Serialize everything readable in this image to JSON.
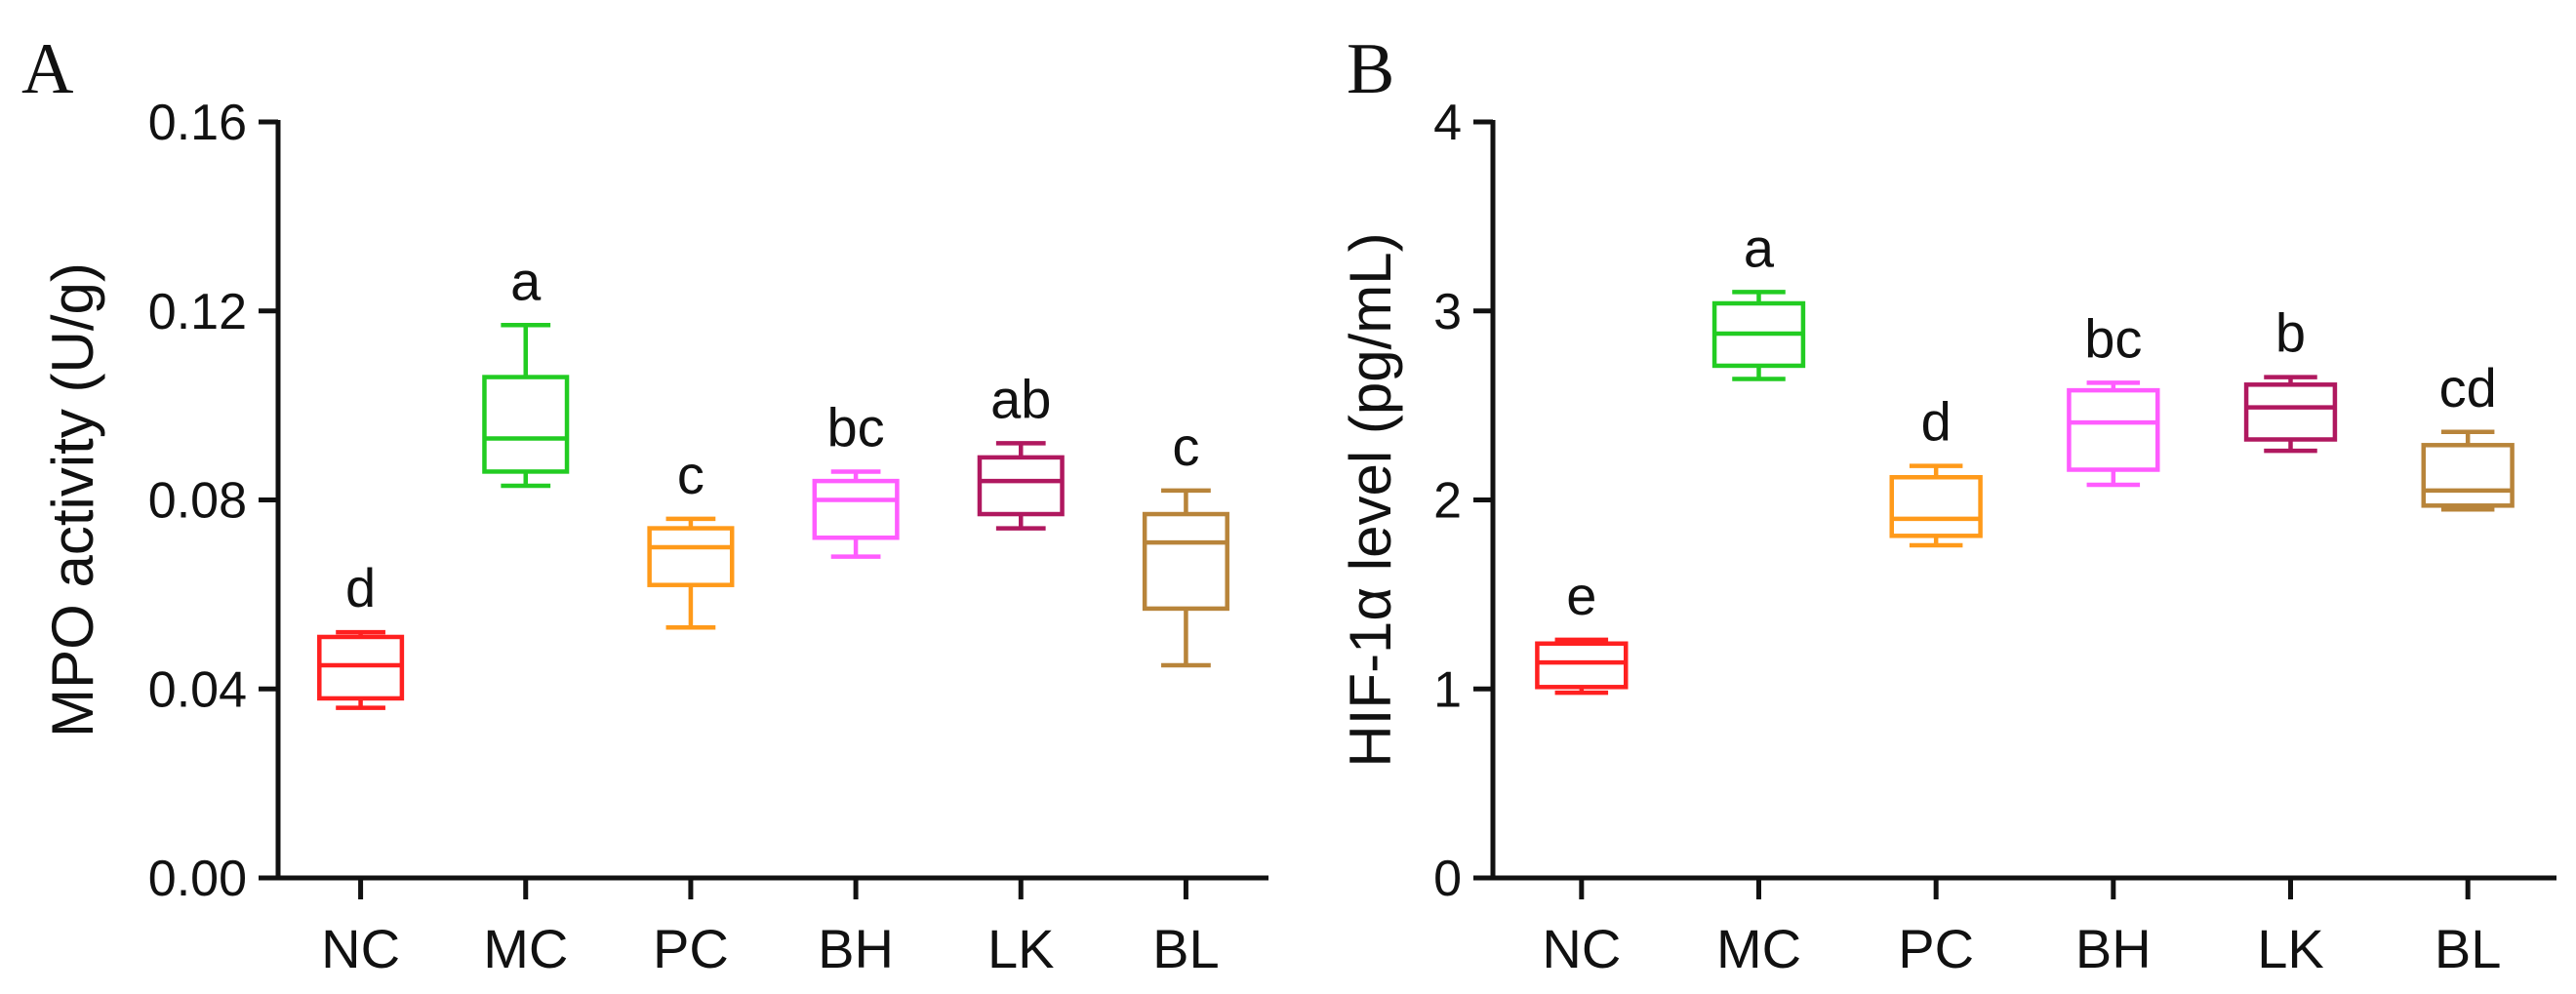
{
  "chart_data": [
    {
      "type": "box",
      "panel": "A",
      "ylabel": "MPO activity (U/g)",
      "xlabel": "",
      "ylim": [
        0,
        0.16
      ],
      "yticks": [
        0.0,
        0.04,
        0.08,
        0.12,
        0.16
      ],
      "ytick_labels": [
        "0.00",
        "0.04",
        "0.08",
        "0.12",
        "0.16"
      ],
      "categories": [
        "NC",
        "MC",
        "PC",
        "BH",
        "LK",
        "BL"
      ],
      "boxes": [
        {
          "group": "NC",
          "min": 0.036,
          "q1": 0.038,
          "median": 0.045,
          "q3": 0.051,
          "max": 0.052,
          "letter": "d",
          "color": "#ff2020"
        },
        {
          "group": "MC",
          "min": 0.083,
          "q1": 0.086,
          "median": 0.093,
          "q3": 0.106,
          "max": 0.117,
          "letter": "a",
          "color": "#22cc22"
        },
        {
          "group": "PC",
          "min": 0.053,
          "q1": 0.062,
          "median": 0.07,
          "q3": 0.074,
          "max": 0.076,
          "letter": "c",
          "color": "#ff9a1a"
        },
        {
          "group": "BH",
          "min": 0.068,
          "q1": 0.072,
          "median": 0.08,
          "q3": 0.084,
          "max": 0.086,
          "letter": "bc",
          "color": "#ff5cff"
        },
        {
          "group": "LK",
          "min": 0.074,
          "q1": 0.077,
          "median": 0.084,
          "q3": 0.089,
          "max": 0.092,
          "letter": "ab",
          "color": "#b0185f"
        },
        {
          "group": "BL",
          "min": 0.045,
          "q1": 0.057,
          "median": 0.071,
          "q3": 0.077,
          "max": 0.082,
          "letter": "c",
          "color": "#b8843a"
        }
      ]
    },
    {
      "type": "box",
      "panel": "B",
      "ylabel": "HIF-1α level (pg/mL)",
      "xlabel": "",
      "ylim": [
        0,
        4
      ],
      "yticks": [
        0,
        1,
        2,
        3,
        4
      ],
      "ytick_labels": [
        "0",
        "1",
        "2",
        "3",
        "4"
      ],
      "categories": [
        "NC",
        "MC",
        "PC",
        "BH",
        "LK",
        "BL"
      ],
      "boxes": [
        {
          "group": "NC",
          "min": 0.98,
          "q1": 1.01,
          "median": 1.14,
          "q3": 1.24,
          "max": 1.26,
          "letter": "e",
          "color": "#ff2020"
        },
        {
          "group": "MC",
          "min": 2.64,
          "q1": 2.71,
          "median": 2.88,
          "q3": 3.04,
          "max": 3.1,
          "letter": "a",
          "color": "#22cc22"
        },
        {
          "group": "PC",
          "min": 1.76,
          "q1": 1.81,
          "median": 1.9,
          "q3": 2.12,
          "max": 2.18,
          "letter": "d",
          "color": "#ff9a1a"
        },
        {
          "group": "BH",
          "min": 2.08,
          "q1": 2.16,
          "median": 2.41,
          "q3": 2.58,
          "max": 2.62,
          "letter": "bc",
          "color": "#ff5cff"
        },
        {
          "group": "LK",
          "min": 2.26,
          "q1": 2.32,
          "median": 2.49,
          "q3": 2.61,
          "max": 2.65,
          "letter": "b",
          "color": "#b0185f"
        },
        {
          "group": "BL",
          "min": 1.95,
          "q1": 1.97,
          "median": 2.05,
          "q3": 2.29,
          "max": 2.36,
          "letter": "cd",
          "color": "#b8843a"
        }
      ]
    }
  ]
}
